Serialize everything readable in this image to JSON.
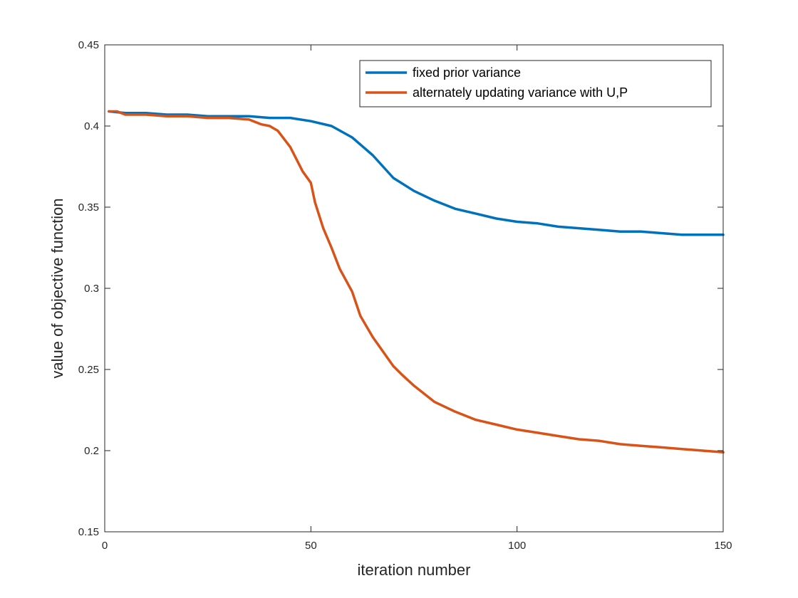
{
  "chart_data": {
    "type": "line",
    "xlabel": "iteration number",
    "ylabel": "value of objective function",
    "xlim": [
      0,
      150
    ],
    "ylim": [
      0.15,
      0.45
    ],
    "xticks": [
      "0",
      "50",
      "100",
      "150"
    ],
    "yticks": [
      "0.15",
      "0.2",
      "0.25",
      "0.3",
      "0.35",
      "0.4",
      "0.45"
    ],
    "xtick_values": [
      0,
      50,
      100,
      150
    ],
    "ytick_values": [
      0.15,
      0.2,
      0.25,
      0.3,
      0.35,
      0.4,
      0.45
    ],
    "legend_position": "top-right",
    "series": [
      {
        "name": "fixed prior variance",
        "color": "#0072BD",
        "x": [
          1,
          5,
          10,
          15,
          20,
          25,
          30,
          35,
          40,
          43,
          45,
          50,
          55,
          60,
          65,
          70,
          75,
          80,
          85,
          90,
          95,
          100,
          105,
          110,
          115,
          120,
          125,
          130,
          135,
          140,
          145,
          150
        ],
        "values": [
          0.409,
          0.408,
          0.408,
          0.407,
          0.407,
          0.406,
          0.406,
          0.406,
          0.405,
          0.405,
          0.405,
          0.403,
          0.4,
          0.393,
          0.382,
          0.368,
          0.36,
          0.354,
          0.349,
          0.346,
          0.343,
          0.341,
          0.34,
          0.338,
          0.337,
          0.336,
          0.335,
          0.335,
          0.334,
          0.333,
          0.333,
          0.333
        ]
      },
      {
        "name": "alternately updating variance with U,P",
        "color": "#D95319",
        "x": [
          1,
          3,
          5,
          10,
          15,
          20,
          25,
          30,
          35,
          38,
          40,
          42,
          45,
          48,
          50,
          51,
          53,
          55,
          57,
          60,
          62,
          65,
          70,
          72,
          75,
          80,
          85,
          90,
          95,
          100,
          105,
          110,
          115,
          120,
          125,
          130,
          135,
          140,
          145,
          150
        ],
        "values": [
          0.409,
          0.409,
          0.407,
          0.407,
          0.406,
          0.406,
          0.405,
          0.405,
          0.404,
          0.401,
          0.4,
          0.397,
          0.387,
          0.372,
          0.365,
          0.353,
          0.337,
          0.325,
          0.312,
          0.298,
          0.283,
          0.27,
          0.252,
          0.247,
          0.24,
          0.23,
          0.224,
          0.219,
          0.216,
          0.213,
          0.211,
          0.209,
          0.207,
          0.206,
          0.204,
          0.203,
          0.202,
          0.201,
          0.2,
          0.199
        ]
      }
    ]
  }
}
